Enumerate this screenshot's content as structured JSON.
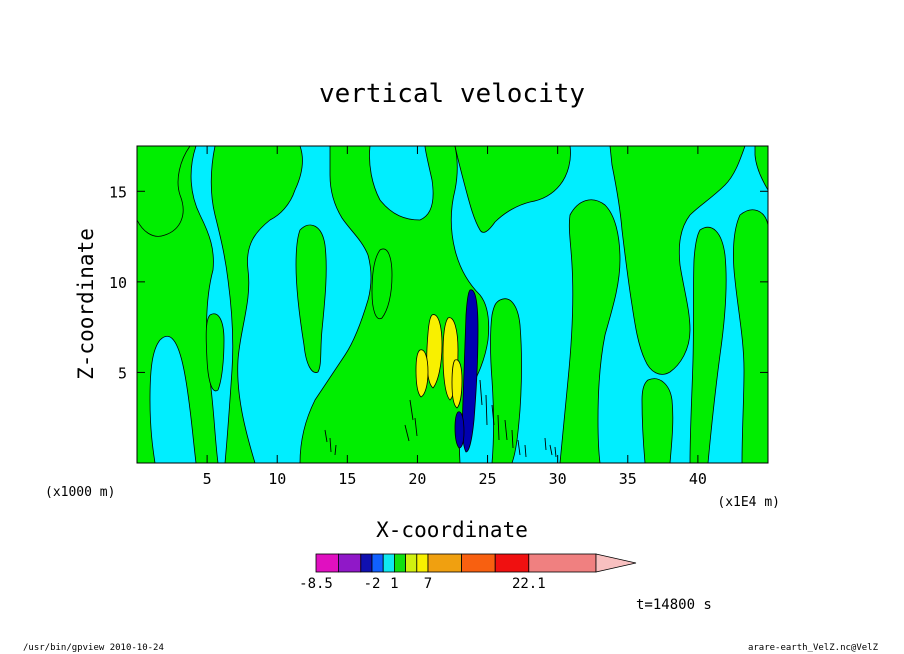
{
  "chart_data": {
    "type": "contour",
    "title": "vertical velocity",
    "xlabel": "X-coordinate",
    "ylabel": "Z-coordinate",
    "x_unit_left": "(x1000 m)",
    "x_unit_right": "(x1E4 m)",
    "xlim": [
      0,
      45
    ],
    "ylim": [
      0,
      17.5
    ],
    "x_ticks": [
      5,
      10,
      15,
      20,
      25,
      30,
      35,
      40
    ],
    "y_ticks": [
      5,
      10,
      15
    ],
    "time_label": "t=14800 s",
    "colorbar": {
      "labels": [
        {
          "text": "-8.5",
          "bin": 0
        },
        {
          "text": "-2",
          "bin": 3
        },
        {
          "text": "1",
          "bin": 5
        },
        {
          "text": "7",
          "bin": 8
        },
        {
          "text": "22.1",
          "bin": 11
        }
      ],
      "colors": [
        "#e010c0",
        "#9018c8",
        "#1010b0",
        "#1060ff",
        "#10e8f0",
        "#10e010",
        "#d0f010",
        "#f8f000",
        "#f0a010",
        "#f86010",
        "#f01010",
        "#f08080"
      ],
      "widths": [
        2,
        2,
        1,
        1,
        1,
        1,
        1,
        1,
        3,
        3,
        3,
        6
      ],
      "arrow_color": "#f8c0c0"
    },
    "field_colors": {
      "background": "#00eeff",
      "positive": "#00ee00",
      "strong_positive": "#f8f000",
      "negative": "#0000b0"
    }
  },
  "footer": {
    "left": "/usr/bin/gpview   2010-10-24",
    "right": "arare-earth_VelZ.nc@VelZ"
  }
}
